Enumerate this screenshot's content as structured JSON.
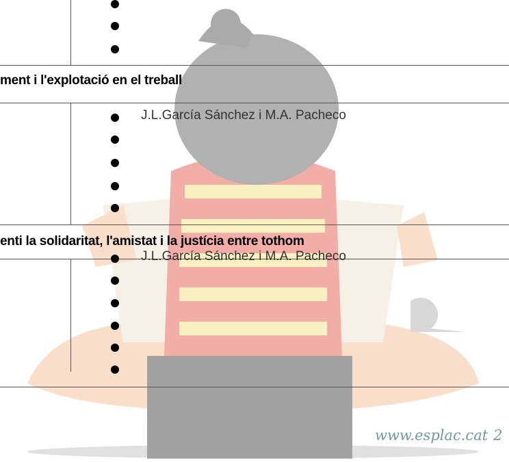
{
  "sections": [
    {
      "title": "ment i l'explotació en el treball",
      "author": "J.L.García Sánchez i M.A. Pacheco"
    },
    {
      "title": "enti la solidaritat, l'amistat i la justícia entre tothom",
      "author": "J.L.García Sánchez i M.A. Pacheco"
    }
  ],
  "footer": {
    "url": "www.esplac.cat",
    "page": "2"
  }
}
